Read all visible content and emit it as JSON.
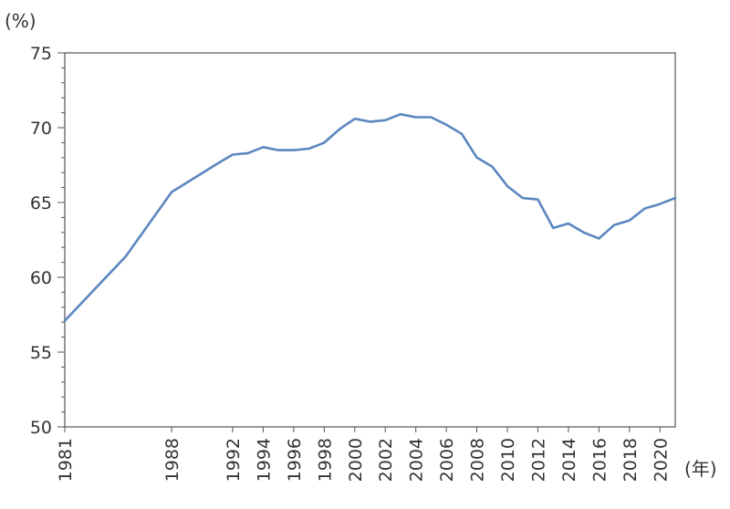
{
  "chart_data": {
    "type": "line",
    "title": "",
    "ylabel": "(%)",
    "xlabel": "(年)",
    "ylim": [
      50,
      75
    ],
    "yticks": [
      50,
      55,
      60,
      65,
      70,
      75
    ],
    "xticks": [
      "1981",
      "1988",
      "1992",
      "1994",
      "1996",
      "1998",
      "2000",
      "2002",
      "2004",
      "2006",
      "2008",
      "2010",
      "2012",
      "2014",
      "2016",
      "2018",
      "2020"
    ],
    "grid": false,
    "line_color": "#5b87bf",
    "series": [
      {
        "x": [
          "1981",
          "1985",
          "1988",
          "1991",
          "1992",
          "1993",
          "1994",
          "1995",
          "1996",
          "1997",
          "1998",
          "1999",
          "2000",
          "2001",
          "2002",
          "2003",
          "2004",
          "2005",
          "2006",
          "2007",
          "2008",
          "2009",
          "2010",
          "2011",
          "2012",
          "2013",
          "2014",
          "2015",
          "2016",
          "2017",
          "2018",
          "2019",
          "2020",
          "2021"
        ],
        "values": [
          57.1,
          61.4,
          65.7,
          67.6,
          68.2,
          68.3,
          68.7,
          68.5,
          68.5,
          68.6,
          69.0,
          69.9,
          70.6,
          70.4,
          70.5,
          70.9,
          70.7,
          70.7,
          70.2,
          69.6,
          68.0,
          67.4,
          66.1,
          65.3,
          65.2,
          63.3,
          63.6,
          63.0,
          62.6,
          63.5,
          63.8,
          64.6,
          64.9,
          65.3
        ]
      }
    ]
  }
}
